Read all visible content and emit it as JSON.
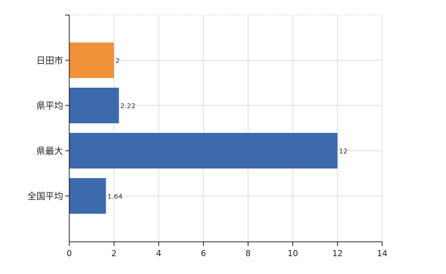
{
  "chart_data": {
    "type": "bar",
    "orientation": "horizontal",
    "categories": [
      "日田市",
      "県平均",
      "県最大",
      "全国平均"
    ],
    "values": [
      2,
      2.22,
      12,
      1.64
    ],
    "value_labels": [
      "2",
      "2.22",
      "12",
      "1.64"
    ],
    "bar_colors": [
      "#f0923a",
      "#3c6aac",
      "#3c6aac",
      "#3c6aac"
    ],
    "xlim": [
      0,
      14
    ],
    "xticks": [
      0,
      2,
      4,
      6,
      8,
      10,
      12,
      14
    ],
    "xtick_labels": [
      "0",
      "2",
      "4",
      "6",
      "8",
      "10",
      "12",
      "14"
    ],
    "grid": true,
    "title": "",
    "xlabel": "",
    "ylabel": ""
  }
}
